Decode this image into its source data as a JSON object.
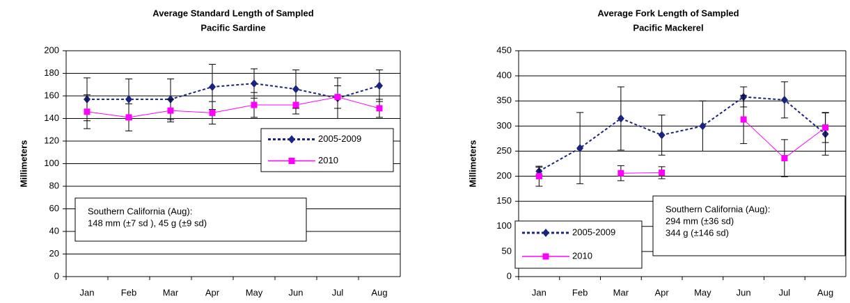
{
  "chart_data": [
    {
      "type": "line",
      "title": [
        "Average Standard Length of Sampled",
        "Pacific Sardine"
      ],
      "y_label": "Millimeters",
      "categories": [
        "Jan",
        "Feb",
        "Mar",
        "Apr",
        "May",
        "Jun",
        "Jul",
        "Aug"
      ],
      "ylim": [
        0,
        200
      ],
      "yticks": [
        0,
        20,
        40,
        60,
        80,
        100,
        120,
        140,
        160,
        180,
        200
      ],
      "grid": true,
      "legend": "right",
      "annotation": [
        "Southern California (Aug):",
        "148 mm (±7 sd ), 45 g (±9 sd)"
      ],
      "series": [
        {
          "name": "2005-2009",
          "color": "#1a237e",
          "values": [
            157,
            157,
            157,
            168,
            171,
            166,
            158,
            169
          ],
          "errors": [
            19,
            18,
            18,
            20,
            13,
            17,
            18,
            14
          ]
        },
        {
          "name": "2010",
          "color": "#ff00ff",
          "values": [
            146,
            141,
            147,
            145,
            152,
            152,
            159,
            149
          ],
          "errors": [
            15,
            12,
            10,
            10,
            11,
            8,
            10,
            8
          ]
        }
      ]
    },
    {
      "type": "line",
      "title": [
        "Average Fork Length of Sampled",
        "Pacific Mackerel"
      ],
      "y_label": "Millimeters",
      "categories": [
        "Jan",
        "Feb",
        "Mar",
        "Apr",
        "May",
        "Jun",
        "Jul",
        "Aug"
      ],
      "ylim": [
        0,
        450
      ],
      "yticks": [
        0,
        50,
        100,
        150,
        200,
        250,
        300,
        350,
        400,
        450
      ],
      "grid": true,
      "legend": "lower left",
      "annotation": [
        "Southern California (Aug):",
        "294 mm (±36 sd)",
        "344 g (±146 sd)"
      ],
      "series": [
        {
          "name": "2005-2009",
          "color": "#1a237e",
          "values": [
            210,
            256,
            315,
            282,
            300,
            358,
            352,
            284
          ],
          "errors": [
            8,
            71,
            63,
            40,
            50,
            20,
            36,
            42
          ]
        },
        {
          "name": "2010",
          "color": "#ff00ff",
          "values": [
            200,
            null,
            206,
            207,
            null,
            313,
            236,
            297
          ],
          "errors": [
            20,
            null,
            15,
            12,
            null,
            48,
            37,
            30
          ]
        }
      ]
    }
  ]
}
